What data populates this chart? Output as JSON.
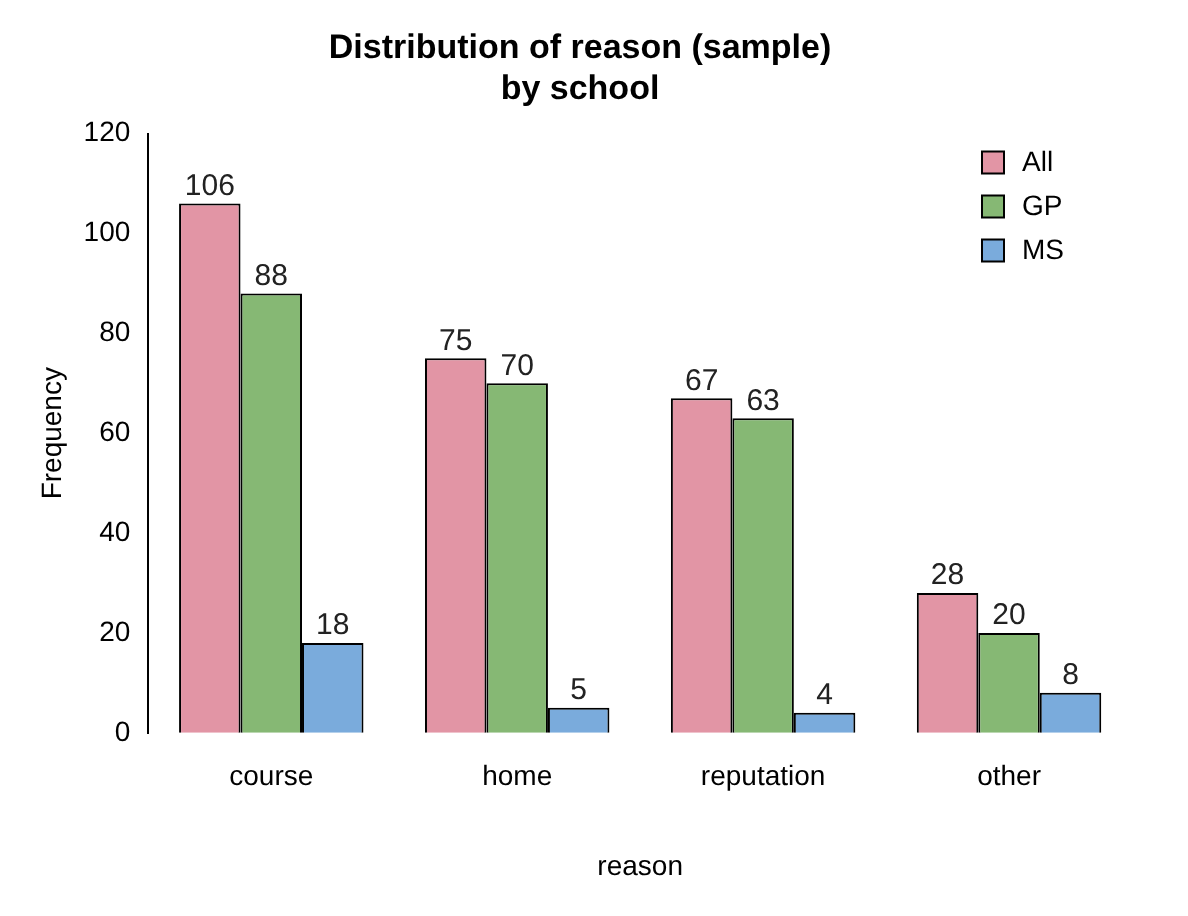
{
  "chart_data": {
    "type": "bar",
    "title": "Distribution of reason (sample)\nby school",
    "xlabel": "reason",
    "ylabel": "Frequency",
    "categories": [
      "course",
      "home",
      "reputation",
      "other"
    ],
    "series": [
      {
        "name": "All",
        "color": "#e295a5",
        "values": [
          106,
          75,
          67,
          28
        ]
      },
      {
        "name": "GP",
        "color": "#86b874",
        "values": [
          88,
          70,
          63,
          20
        ]
      },
      {
        "name": "MS",
        "color": "#7aabdc",
        "values": [
          18,
          5,
          4,
          8
        ]
      }
    ],
    "ylim": [
      0,
      120
    ],
    "yticks": [
      0,
      20,
      40,
      60,
      80,
      100,
      120
    ],
    "grid": false,
    "legend": "top right",
    "data_labels": true
  }
}
